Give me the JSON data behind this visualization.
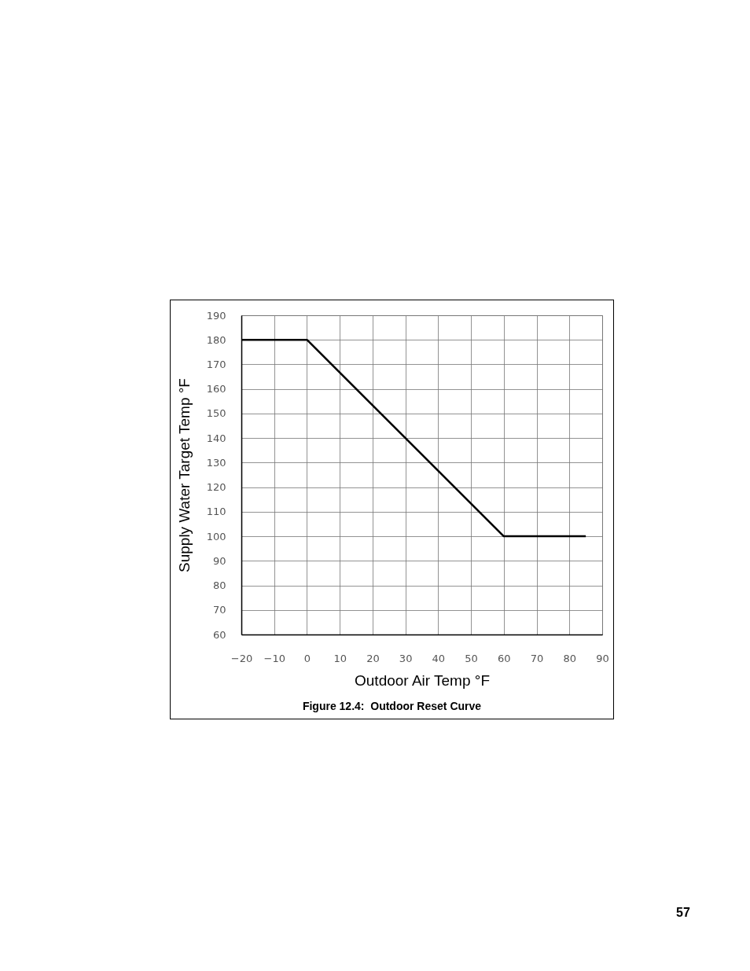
{
  "chart_data": {
    "type": "line",
    "xlabel": "Outdoor Air Temp °F",
    "ylabel": "Supply Water Target Temp °F",
    "x": [
      -20,
      0,
      60,
      85
    ],
    "series": [
      {
        "color": "#000000",
        "values": [
          180,
          180,
          100,
          100
        ]
      }
    ],
    "xlim": [
      -20,
      90
    ],
    "xticks": [
      -20,
      -10,
      0,
      10,
      20,
      30,
      40,
      50,
      60,
      70,
      80,
      90
    ],
    "ylim": [
      60,
      190
    ],
    "yticks": [
      60,
      70,
      80,
      90,
      100,
      110,
      120,
      130,
      140,
      150,
      160,
      170,
      180,
      190
    ],
    "grid": true,
    "marker": "none",
    "line_style": "solid",
    "annotations": [
      "Figure 12.4:  Outdoor Reset Curve",
      "57"
    ]
  }
}
